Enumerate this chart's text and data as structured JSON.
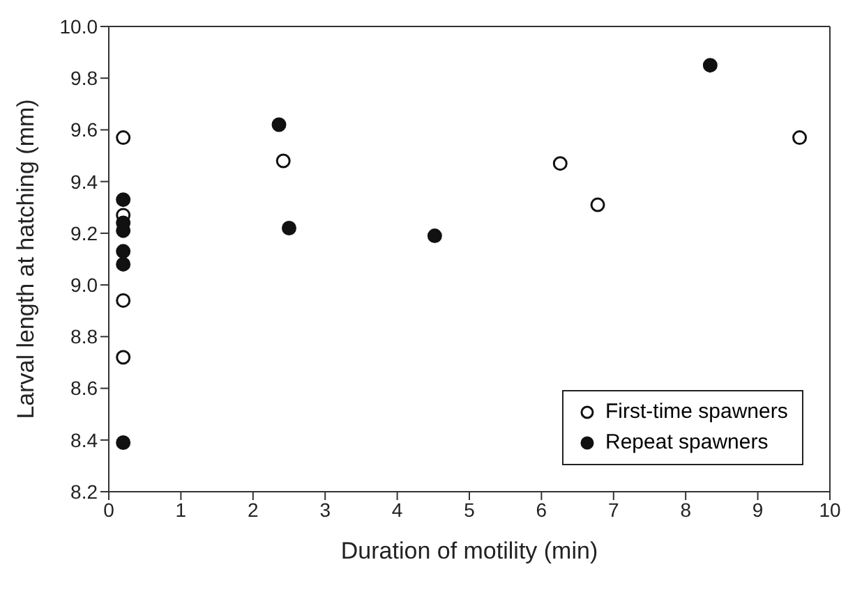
{
  "chart_data": {
    "type": "scatter",
    "xlabel": "Duration of motility (min)",
    "ylabel": "Larval length at hatching (mm)",
    "xlim": [
      0,
      10
    ],
    "xticks": [
      0,
      1,
      2,
      3,
      4,
      5,
      6,
      7,
      8,
      9,
      10
    ],
    "ylim": [
      8.2,
      10.0
    ],
    "yticks": [
      {
        "value": 8.2,
        "label": "8.2"
      },
      {
        "value": 8.4,
        "label": "8.4"
      },
      {
        "value": 8.6,
        "label": "8.6"
      },
      {
        "value": 8.8,
        "label": "8.8"
      },
      {
        "value": 9.0,
        "label": "9.0"
      },
      {
        "value": 9.2,
        "label": "9.2"
      },
      {
        "value": 9.4,
        "label": "9.4"
      },
      {
        "value": 9.6,
        "label": "9.6"
      },
      {
        "value": 9.8,
        "label": "9.8"
      },
      {
        "value": 10.0,
        "label": "10.0"
      }
    ],
    "grid": false,
    "legend": "bottom right",
    "marker": "circle",
    "series": [
      {
        "name": "First-time spawners",
        "color": "#ffffff",
        "x": [
          0.2,
          0.2,
          0.2,
          0.2,
          2.42,
          6.26,
          6.78,
          9.58
        ],
        "values": [
          9.57,
          9.27,
          8.94,
          8.72,
          9.48,
          9.47,
          9.31,
          9.57
        ]
      },
      {
        "name": "Repeat spawners",
        "color": "#111111",
        "x": [
          0.2,
          0.2,
          0.2,
          0.2,
          0.2,
          0.2,
          2.36,
          2.5,
          4.52,
          8.34
        ],
        "values": [
          9.33,
          9.24,
          9.21,
          9.13,
          9.08,
          8.39,
          9.62,
          9.22,
          9.19,
          9.85
        ]
      }
    ]
  }
}
